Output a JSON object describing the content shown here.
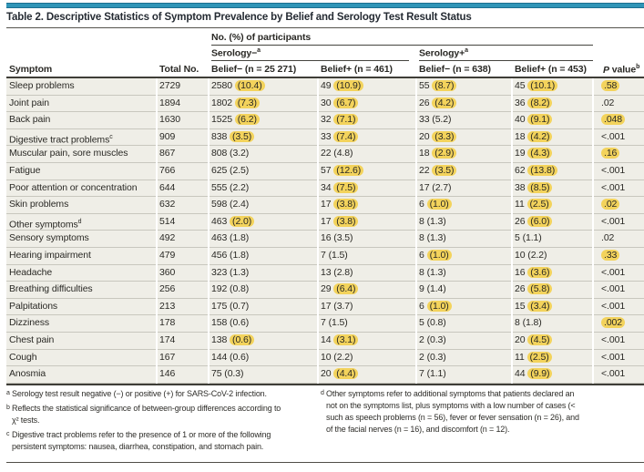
{
  "accent_color": "#3095b7",
  "highlight_color": "#f3d35c",
  "table": {
    "title": "Table 2. Descriptive Statistics of Symptom Prevalence by Belief and Serology Test Result Status",
    "participants_spanner": "No. (%) of participants",
    "serology_neg": {
      "label": "Serology−",
      "sup": "a"
    },
    "serology_pos": {
      "label": "Serology+",
      "sup": "a"
    },
    "col_headers": {
      "symptom": "Symptom",
      "total": "Total No.",
      "sero_neg_belief_neg": "Belief− (n = 25 271)",
      "sero_neg_belief_pos": "Belief+ (n = 461)",
      "sero_pos_belief_neg": "Belief− (n = 638)",
      "sero_pos_belief_pos": "Belief+ (n = 453)",
      "p_value": "P value",
      "p_value_sup": "b"
    },
    "rows": [
      {
        "symptom": "Sleep problems",
        "sup": "",
        "total": "2729",
        "cells": [
          {
            "n": "2580",
            "pct": "(10.4)",
            "hl": true
          },
          {
            "n": "49",
            "pct": "(10.9)",
            "hl": true
          },
          {
            "n": "55",
            "pct": "(8.7)",
            "hl": true
          },
          {
            "n": "45",
            "pct": "(10.1)",
            "hl": true
          }
        ],
        "p": ".58",
        "p_hl": true
      },
      {
        "symptom": "Joint pain",
        "sup": "",
        "total": "1894",
        "cells": [
          {
            "n": "1802",
            "pct": "(7.3)",
            "hl": true
          },
          {
            "n": "30",
            "pct": "(6.7)",
            "hl": true
          },
          {
            "n": "26",
            "pct": "(4.2)",
            "hl": true
          },
          {
            "n": "36",
            "pct": "(8.2)",
            "hl": true
          }
        ],
        "p": ".02",
        "p_hl": false
      },
      {
        "symptom": "Back pain",
        "sup": "",
        "total": "1630",
        "cells": [
          {
            "n": "1525",
            "pct": "(6.2)",
            "hl": true
          },
          {
            "n": "32",
            "pct": "(7.1)",
            "hl": true
          },
          {
            "n": "33",
            "pct": "(5.2)",
            "hl": false
          },
          {
            "n": "40",
            "pct": "(9.1)",
            "hl": true
          }
        ],
        "p": ".048",
        "p_hl": true
      },
      {
        "symptom": "Digestive tract problems",
        "sup": "c",
        "total": "909",
        "cells": [
          {
            "n": "838",
            "pct": "(3.5)",
            "hl": true
          },
          {
            "n": "33",
            "pct": "(7.4)",
            "hl": true
          },
          {
            "n": "20",
            "pct": "(3.3)",
            "hl": true
          },
          {
            "n": "18",
            "pct": "(4.2)",
            "hl": true
          }
        ],
        "p": "<.001",
        "p_hl": false
      },
      {
        "symptom": "Muscular pain, sore muscles",
        "sup": "",
        "total": "867",
        "cells": [
          {
            "n": "808",
            "pct": "(3.2)",
            "hl": false
          },
          {
            "n": "22",
            "pct": "(4.8)",
            "hl": false
          },
          {
            "n": "18",
            "pct": "(2.9)",
            "hl": true
          },
          {
            "n": "19",
            "pct": "(4.3)",
            "hl": true
          }
        ],
        "p": ".16",
        "p_hl": true
      },
      {
        "symptom": "Fatigue",
        "sup": "",
        "total": "766",
        "cells": [
          {
            "n": "625",
            "pct": "(2.5)",
            "hl": false
          },
          {
            "n": "57",
            "pct": "(12.6)",
            "hl": true
          },
          {
            "n": "22",
            "pct": "(3.5)",
            "hl": true
          },
          {
            "n": "62",
            "pct": "(13.8)",
            "hl": true
          }
        ],
        "p": "<.001",
        "p_hl": false
      },
      {
        "symptom": "Poor attention or concentration",
        "sup": "",
        "total": "644",
        "cells": [
          {
            "n": "555",
            "pct": "(2.2)",
            "hl": false
          },
          {
            "n": "34",
            "pct": "(7.5)",
            "hl": true
          },
          {
            "n": "17",
            "pct": "(2.7)",
            "hl": false
          },
          {
            "n": "38",
            "pct": "(8.5)",
            "hl": true
          }
        ],
        "p": "<.001",
        "p_hl": false
      },
      {
        "symptom": "Skin problems",
        "sup": "",
        "total": "632",
        "cells": [
          {
            "n": "598",
            "pct": "(2.4)",
            "hl": false
          },
          {
            "n": "17",
            "pct": "(3.8)",
            "hl": true
          },
          {
            "n": "6",
            "pct": "(1.0)",
            "hl": true
          },
          {
            "n": "11",
            "pct": "(2.5)",
            "hl": true
          }
        ],
        "p": ".02",
        "p_hl": true
      },
      {
        "symptom": "Other symptoms",
        "sup": "d",
        "total": "514",
        "cells": [
          {
            "n": "463",
            "pct": "(2.0)",
            "hl": true
          },
          {
            "n": "17",
            "pct": "(3.8)",
            "hl": true
          },
          {
            "n": "8",
            "pct": "(1.3)",
            "hl": false
          },
          {
            "n": "26",
            "pct": "(6.0)",
            "hl": true
          }
        ],
        "p": "<.001",
        "p_hl": false
      },
      {
        "symptom": "Sensory symptoms",
        "sup": "",
        "total": "492",
        "cells": [
          {
            "n": "463",
            "pct": "(1.8)",
            "hl": false
          },
          {
            "n": "16",
            "pct": "(3.5)",
            "hl": false
          },
          {
            "n": "8",
            "pct": "(1.3)",
            "hl": false
          },
          {
            "n": "5",
            "pct": "(1.1)",
            "hl": false
          }
        ],
        "p": ".02",
        "p_hl": false
      },
      {
        "symptom": "Hearing impairment",
        "sup": "",
        "total": "479",
        "cells": [
          {
            "n": "456",
            "pct": "(1.8)",
            "hl": false
          },
          {
            "n": "7",
            "pct": "(1.5)",
            "hl": false
          },
          {
            "n": "6",
            "pct": "(1.0)",
            "hl": true
          },
          {
            "n": "10",
            "pct": "(2.2)",
            "hl": false
          }
        ],
        "p": ".33",
        "p_hl": true
      },
      {
        "symptom": "Headache",
        "sup": "",
        "total": "360",
        "cells": [
          {
            "n": "323",
            "pct": "(1.3)",
            "hl": false
          },
          {
            "n": "13",
            "pct": "(2.8)",
            "hl": false
          },
          {
            "n": "8",
            "pct": "(1.3)",
            "hl": false
          },
          {
            "n": "16",
            "pct": "(3.6)",
            "hl": true
          }
        ],
        "p": "<.001",
        "p_hl": false
      },
      {
        "symptom": "Breathing difficulties",
        "sup": "",
        "total": "256",
        "cells": [
          {
            "n": "192",
            "pct": "(0.8)",
            "hl": false
          },
          {
            "n": "29",
            "pct": "(6.4)",
            "hl": true
          },
          {
            "n": "9",
            "pct": "(1.4)",
            "hl": false
          },
          {
            "n": "26",
            "pct": "(5.8)",
            "hl": true
          }
        ],
        "p": "<.001",
        "p_hl": false
      },
      {
        "symptom": "Palpitations",
        "sup": "",
        "total": "213",
        "cells": [
          {
            "n": "175",
            "pct": "(0.7)",
            "hl": false
          },
          {
            "n": "17",
            "pct": "(3.7)",
            "hl": false
          },
          {
            "n": "6",
            "pct": "(1.0)",
            "hl": true
          },
          {
            "n": "15",
            "pct": "(3.4)",
            "hl": true
          }
        ],
        "p": "<.001",
        "p_hl": false
      },
      {
        "symptom": "Dizziness",
        "sup": "",
        "total": "178",
        "cells": [
          {
            "n": "158",
            "pct": "(0.6)",
            "hl": false
          },
          {
            "n": "7",
            "pct": "(1.5)",
            "hl": false
          },
          {
            "n": "5",
            "pct": "(0.8)",
            "hl": false
          },
          {
            "n": "8",
            "pct": "(1.8)",
            "hl": false
          }
        ],
        "p": ".002",
        "p_hl": true
      },
      {
        "symptom": "Chest pain",
        "sup": "",
        "total": "174",
        "cells": [
          {
            "n": "138",
            "pct": "(0.6)",
            "hl": true
          },
          {
            "n": "14",
            "pct": "(3.1)",
            "hl": true
          },
          {
            "n": "2",
            "pct": "(0.3)",
            "hl": false
          },
          {
            "n": "20",
            "pct": "(4.5)",
            "hl": true
          }
        ],
        "p": "<.001",
        "p_hl": false
      },
      {
        "symptom": "Cough",
        "sup": "",
        "total": "167",
        "cells": [
          {
            "n": "144",
            "pct": "(0.6)",
            "hl": false
          },
          {
            "n": "10",
            "pct": "(2.2)",
            "hl": false
          },
          {
            "n": "2",
            "pct": "(0.3)",
            "hl": false
          },
          {
            "n": "11",
            "pct": "(2.5)",
            "hl": true
          }
        ],
        "p": "<.001",
        "p_hl": false
      },
      {
        "symptom": "Anosmia",
        "sup": "",
        "total": "146",
        "cells": [
          {
            "n": "75",
            "pct": "(0.3)",
            "hl": false
          },
          {
            "n": "20",
            "pct": "(4.4)",
            "hl": true
          },
          {
            "n": "7",
            "pct": "(1.1)",
            "hl": false
          },
          {
            "n": "44",
            "pct": "(9.9)",
            "hl": true
          }
        ],
        "p": "<.001",
        "p_hl": false
      }
    ]
  },
  "footnotes": [
    {
      "marker": "a",
      "side": "left",
      "lines": [
        "Serology test result negative (−) or positive (+) for SARS-CoV-2 infection."
      ]
    },
    {
      "marker": "b",
      "side": "left",
      "lines": [
        "Reflects the statistical significance of between-group differences according to",
        "χ² tests."
      ]
    },
    {
      "marker": "c",
      "side": "left",
      "lines": [
        "Digestive tract problems refer to the presence of 1 or more of the following",
        "persistent symptoms: nausea, diarrhea, constipation, and stomach pain."
      ]
    },
    {
      "marker": "d",
      "side": "right",
      "lines": [
        "Other symptoms refer to additional symptoms that patients declared an",
        "not on the symptoms list, plus symptoms with a low number of cases (<",
        "such as speech problems (n = 56), fever or fever sensation (n = 26), and",
        "of the facial nerves (n = 16), and discomfort (n = 12)."
      ]
    }
  ]
}
